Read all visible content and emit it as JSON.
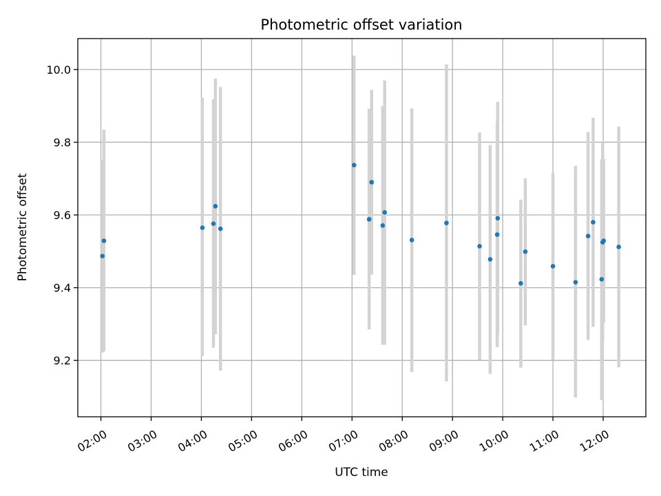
{
  "chart_data": {
    "type": "scatter",
    "title": "Photometric offset variation",
    "xlabel": "UTC time",
    "ylabel": "Photometric offset",
    "x_unit": "UTC hours",
    "xlim": [
      1.54,
      12.85
    ],
    "ylim": [
      9.045,
      10.085
    ],
    "x_ticks": [
      {
        "value": 2,
        "label": "02:00"
      },
      {
        "value": 3,
        "label": "03:00"
      },
      {
        "value": 4,
        "label": "04:00"
      },
      {
        "value": 5,
        "label": "05:00"
      },
      {
        "value": 6,
        "label": "06:00"
      },
      {
        "value": 7,
        "label": "07:00"
      },
      {
        "value": 8,
        "label": "08:00"
      },
      {
        "value": 9,
        "label": "09:00"
      },
      {
        "value": 10,
        "label": "10:00"
      },
      {
        "value": 11,
        "label": "11:00"
      },
      {
        "value": 12,
        "label": "12:00"
      }
    ],
    "y_ticks": [
      {
        "value": 9.2,
        "label": "9.2"
      },
      {
        "value": 9.4,
        "label": "9.4"
      },
      {
        "value": 9.6,
        "label": "9.6"
      },
      {
        "value": 9.8,
        "label": "9.8"
      },
      {
        "value": 10.0,
        "label": "10.0"
      }
    ],
    "grid": true,
    "marker_color": "#1f77b4",
    "errorbar_color": "#d3d3d3",
    "points": [
      {
        "x": 2.03,
        "y": 9.487,
        "yerr_low": 9.222,
        "yerr_high": 9.752
      },
      {
        "x": 2.06,
        "y": 9.529,
        "yerr_low": 9.225,
        "yerr_high": 9.835
      },
      {
        "x": 4.02,
        "y": 9.565,
        "yerr_low": 9.212,
        "yerr_high": 9.922
      },
      {
        "x": 4.24,
        "y": 9.576,
        "yerr_low": 9.235,
        "yerr_high": 9.918
      },
      {
        "x": 4.28,
        "y": 9.624,
        "yerr_low": 9.272,
        "yerr_high": 9.975
      },
      {
        "x": 4.38,
        "y": 9.562,
        "yerr_low": 9.172,
        "yerr_high": 9.952
      },
      {
        "x": 7.04,
        "y": 9.737,
        "yerr_low": 9.435,
        "yerr_high": 10.038
      },
      {
        "x": 7.34,
        "y": 9.588,
        "yerr_low": 9.285,
        "yerr_high": 9.892
      },
      {
        "x": 7.39,
        "y": 9.69,
        "yerr_low": 9.436,
        "yerr_high": 9.944
      },
      {
        "x": 7.61,
        "y": 9.571,
        "yerr_low": 9.243,
        "yerr_high": 9.899
      },
      {
        "x": 7.65,
        "y": 9.607,
        "yerr_low": 9.243,
        "yerr_high": 9.97
      },
      {
        "x": 8.19,
        "y": 9.531,
        "yerr_low": 9.168,
        "yerr_high": 9.893
      },
      {
        "x": 8.88,
        "y": 9.578,
        "yerr_low": 9.142,
        "yerr_high": 10.014
      },
      {
        "x": 9.54,
        "y": 9.514,
        "yerr_low": 9.201,
        "yerr_high": 9.827
      },
      {
        "x": 9.75,
        "y": 9.478,
        "yerr_low": 9.163,
        "yerr_high": 9.792
      },
      {
        "x": 9.89,
        "y": 9.546,
        "yerr_low": 9.236,
        "yerr_high": 9.855
      },
      {
        "x": 9.9,
        "y": 9.591,
        "yerr_low": 9.271,
        "yerr_high": 9.911
      },
      {
        "x": 10.36,
        "y": 9.412,
        "yerr_low": 9.18,
        "yerr_high": 9.642
      },
      {
        "x": 10.45,
        "y": 9.499,
        "yerr_low": 9.296,
        "yerr_high": 9.701
      },
      {
        "x": 11.0,
        "y": 9.459,
        "yerr_low": 9.201,
        "yerr_high": 9.716
      },
      {
        "x": 11.45,
        "y": 9.415,
        "yerr_low": 9.098,
        "yerr_high": 9.735
      },
      {
        "x": 11.7,
        "y": 9.542,
        "yerr_low": 9.256,
        "yerr_high": 9.828
      },
      {
        "x": 11.8,
        "y": 9.58,
        "yerr_low": 9.292,
        "yerr_high": 9.867
      },
      {
        "x": 11.97,
        "y": 9.423,
        "yerr_low": 9.091,
        "yerr_high": 9.753
      },
      {
        "x": 11.99,
        "y": 9.525,
        "yerr_low": 9.25,
        "yerr_high": 9.8
      },
      {
        "x": 12.01,
        "y": 9.529,
        "yerr_low": 9.304,
        "yerr_high": 9.754
      },
      {
        "x": 12.31,
        "y": 9.512,
        "yerr_low": 9.181,
        "yerr_high": 9.843
      }
    ]
  }
}
